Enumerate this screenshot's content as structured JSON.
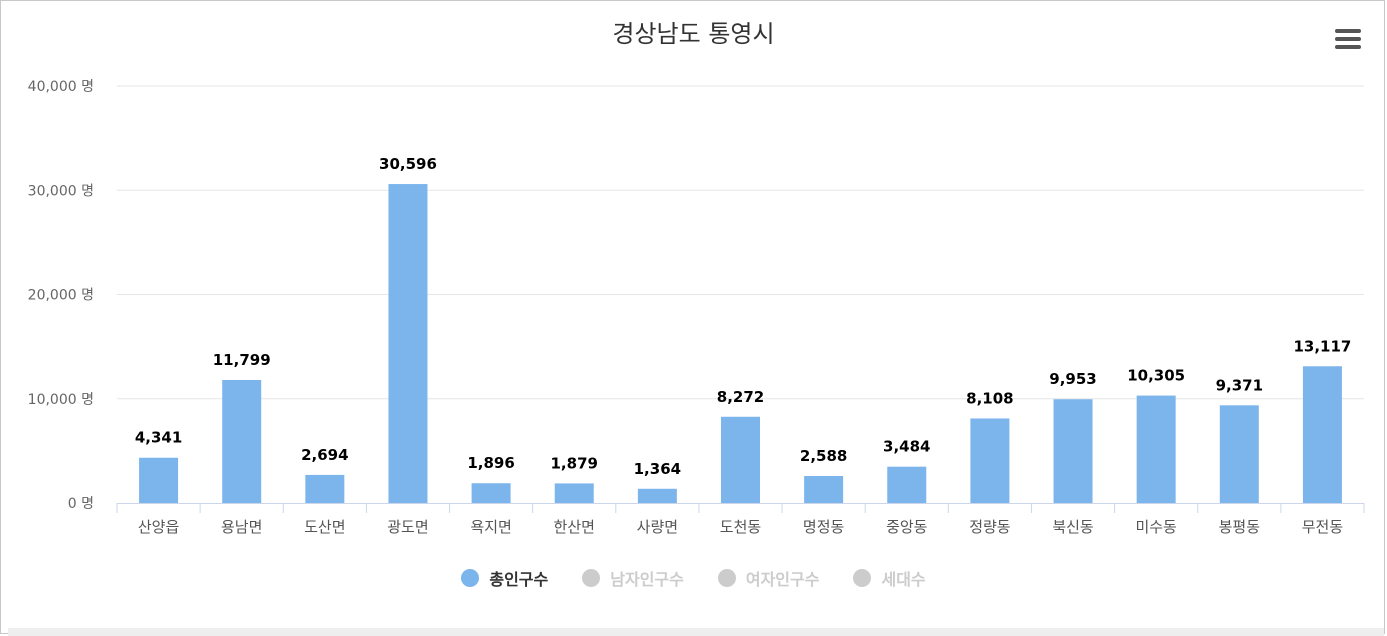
{
  "chart_data": {
    "type": "bar",
    "title": "경상남도 통영시",
    "categories": [
      "산양읍",
      "용남면",
      "도산면",
      "광도면",
      "욕지면",
      "한산면",
      "사량면",
      "도천동",
      "명정동",
      "중앙동",
      "정량동",
      "북신동",
      "미수동",
      "봉평동",
      "무전동"
    ],
    "series": [
      {
        "name": "총인구수",
        "values": [
          4341,
          11799,
          2694,
          30596,
          1896,
          1879,
          1364,
          8272,
          2588,
          3484,
          8108,
          9953,
          10305,
          9371,
          13117
        ]
      }
    ],
    "data_labels": [
      "4,341",
      "11,799",
      "2,694",
      "30,596",
      "1,896",
      "1,879",
      "1,364",
      "8,272",
      "2,588",
      "3,484",
      "8,108",
      "9,953",
      "10,305",
      "9,371",
      "13,117"
    ],
    "y_ticks": [
      0,
      10000,
      20000,
      30000,
      40000
    ],
    "y_tick_labels": [
      "0 명",
      "10,000 명",
      "20,000 명",
      "30,000 명",
      "40,000 명"
    ],
    "ylim": [
      0,
      40000
    ],
    "grid": true,
    "legend_position": "bottom",
    "bar_color": "#7cb5ec"
  },
  "legend": {
    "items": [
      {
        "label": "총인구수",
        "active": true,
        "color": "#7cb5ec"
      },
      {
        "label": "남자인구수",
        "active": false,
        "color": "#cccccc"
      },
      {
        "label": "여자인구수",
        "active": false,
        "color": "#cccccc"
      },
      {
        "label": "세대수",
        "active": false,
        "color": "#cccccc"
      }
    ]
  },
  "menu": {
    "icon": "hamburger-menu-icon"
  }
}
